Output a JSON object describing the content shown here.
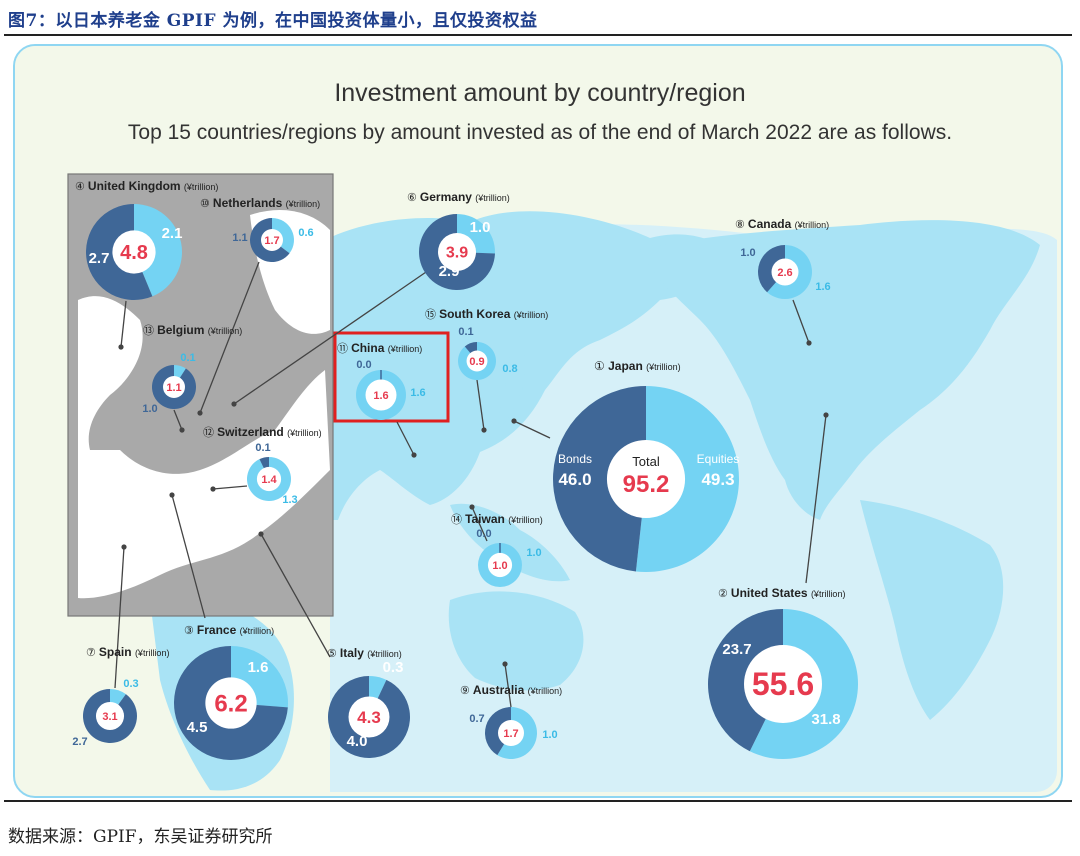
{
  "figure_title": "图7：以日本养老金 GPIF 为例，在中国投资体量小，且仅投资权益",
  "source_note": "数据来源：GPIF，东吴证券研究所",
  "colors": {
    "bonds": "#3f6797",
    "equities": "#74d3f3",
    "total": "#e63a4e",
    "highlight": "#e02020"
  },
  "chart_data": {
    "type": "pie",
    "title": "Investment amount by country/region",
    "subtitle": "Top 15 countries/regions by amount invested as of the end of March 2022 are as follows.",
    "unit": "(¥trillion)",
    "series_names": [
      "Bonds",
      "Equities"
    ],
    "total_label": "Total",
    "regions": [
      {
        "rank": "①",
        "name": "Japan",
        "total": "95.2",
        "bonds": "46.0",
        "equities": "49.3"
      },
      {
        "rank": "②",
        "name": "United States",
        "total": "55.6",
        "bonds": "23.7",
        "equities": "31.8"
      },
      {
        "rank": "③",
        "name": "France",
        "total": "6.2",
        "bonds": "4.5",
        "equities": "1.6"
      },
      {
        "rank": "④",
        "name": "United Kingdom",
        "total": "4.8",
        "bonds": "2.7",
        "equities": "2.1"
      },
      {
        "rank": "⑤",
        "name": "Italy",
        "total": "4.3",
        "bonds": "4.0",
        "equities": "0.3"
      },
      {
        "rank": "⑥",
        "name": "Germany",
        "total": "3.9",
        "bonds": "2.9",
        "equities": "1.0"
      },
      {
        "rank": "⑦",
        "name": "Spain",
        "total": "3.1",
        "bonds": "2.7",
        "equities": "0.3"
      },
      {
        "rank": "⑧",
        "name": "Canada",
        "total": "2.6",
        "bonds": "1.0",
        "equities": "1.6"
      },
      {
        "rank": "⑨",
        "name": "Australia",
        "total": "1.7",
        "bonds": "0.7",
        "equities": "1.0"
      },
      {
        "rank": "⑩",
        "name": "Netherlands",
        "total": "1.7",
        "bonds": "1.1",
        "equities": "0.6"
      },
      {
        "rank": "⑪",
        "name": "China",
        "total": "1.6",
        "bonds": "0.0",
        "equities": "1.6",
        "highlighted": true
      },
      {
        "rank": "⑫",
        "name": "Switzerland",
        "total": "1.4",
        "bonds": "0.1",
        "equities": "1.3"
      },
      {
        "rank": "⑬",
        "name": "Belgium",
        "total": "1.1",
        "bonds": "1.0",
        "equities": "0.1"
      },
      {
        "rank": "⑭",
        "name": "Taiwan",
        "total": "1.0",
        "bonds": "0.0",
        "equities": "1.0"
      },
      {
        "rank": "⑮",
        "name": "South Korea",
        "total": "0.9",
        "bonds": "0.1",
        "equities": "0.8"
      }
    ]
  }
}
